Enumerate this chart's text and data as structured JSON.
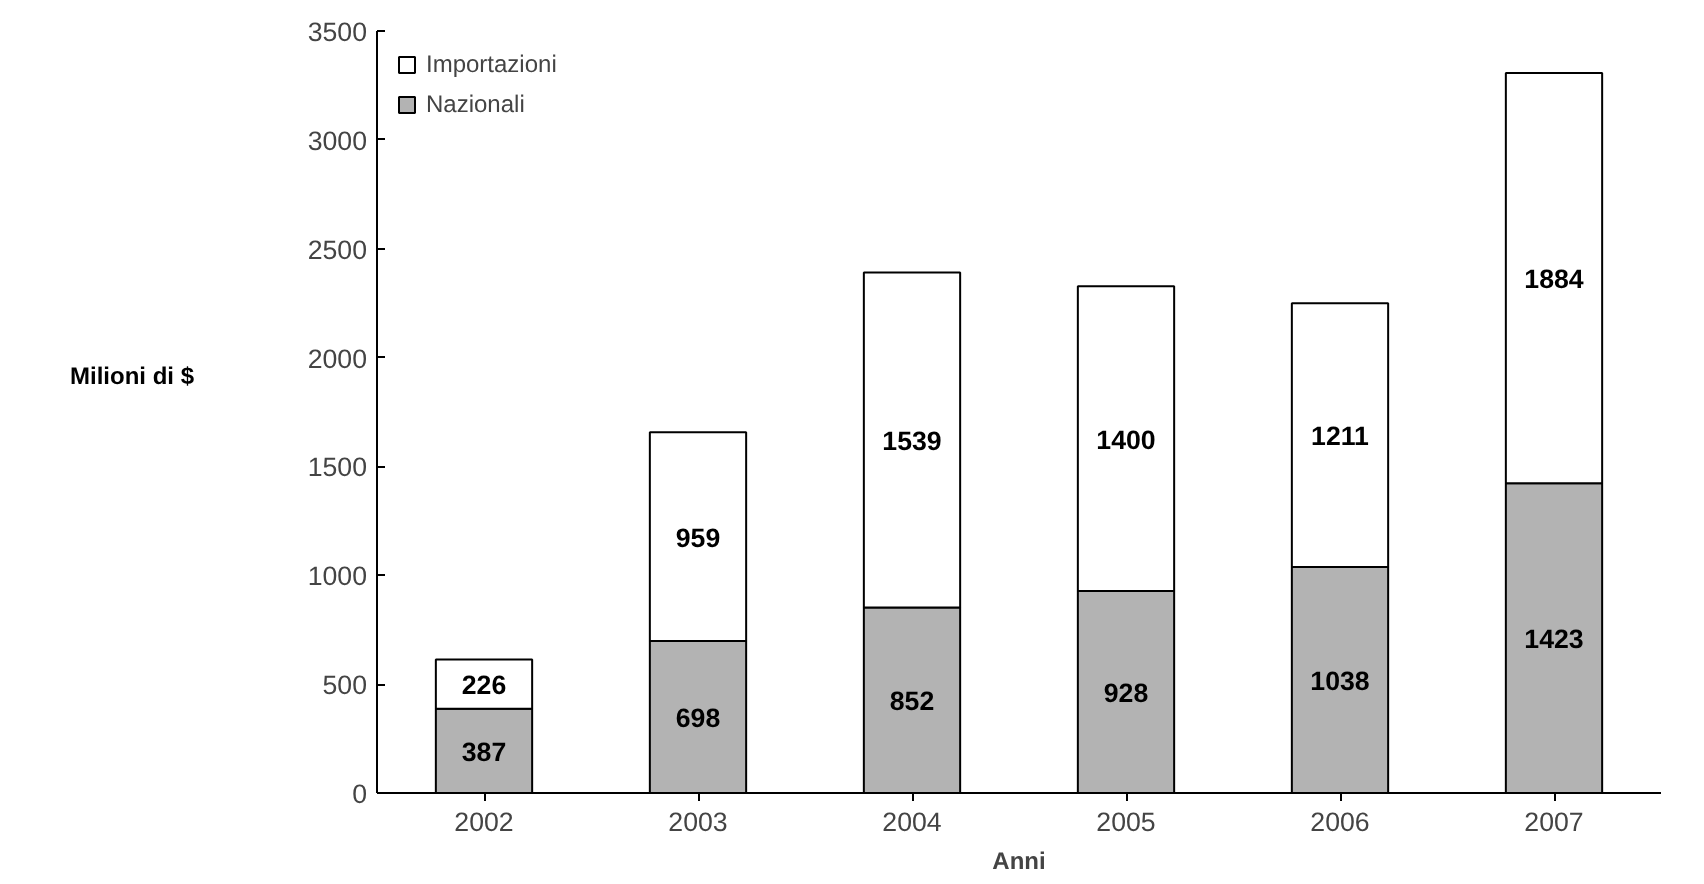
{
  "chart_data": {
    "type": "bar",
    "stacked": true,
    "xlabel": "Anni",
    "ylabel": "Milioni di $",
    "categories": [
      "2002",
      "2003",
      "2004",
      "2005",
      "2006",
      "2007"
    ],
    "series": [
      {
        "name": "Nazionali",
        "color": "#b3b3b3",
        "values": [
          387,
          698,
          852,
          928,
          1038,
          1423
        ]
      },
      {
        "name": "Importazioni",
        "color": "#ffffff",
        "values": [
          226,
          959,
          1539,
          1400,
          1211,
          1884
        ]
      }
    ],
    "ylim": [
      0,
      3500
    ],
    "yticks": [
      0,
      500,
      1000,
      1500,
      2000,
      2500,
      3000,
      3500
    ],
    "grid": false,
    "legend": "top left",
    "data_labels": true
  }
}
